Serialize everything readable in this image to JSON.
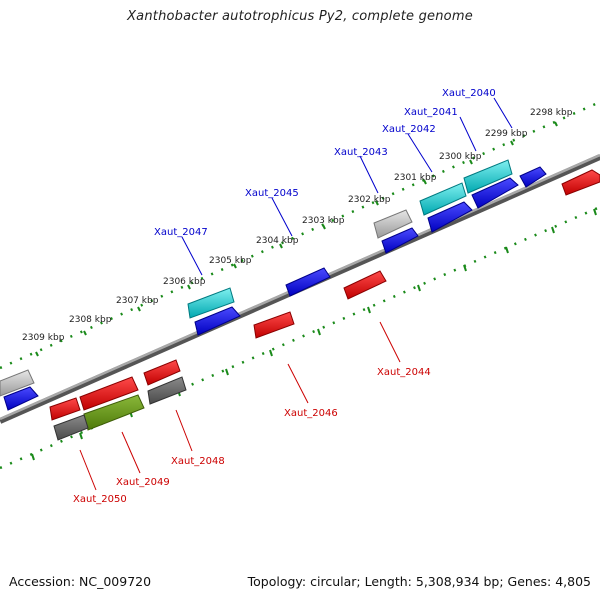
{
  "header": {
    "title": "Xanthobacter autotrophicus Py2, complete genome"
  },
  "footer": {
    "accession": "Accession: NC_009720",
    "summary": "Topology: circular; Length: 5,308,934 bp; Genes: 4,805"
  },
  "scale": {
    "ticks": [
      "2298 kbp",
      "2299 kbp",
      "2300 kbp",
      "2301 kbp",
      "2302 kbp",
      "2303 kbp",
      "2304 kbp",
      "2305 kbp",
      "2306 kbp",
      "2307 kbp",
      "2308 kbp",
      "2309 kbp"
    ]
  },
  "genes": {
    "forward_labels": [
      "Xaut_2040",
      "Xaut_2041",
      "Xaut_2042",
      "Xaut_2043",
      "Xaut_2045",
      "Xaut_2047"
    ],
    "reverse_labels": [
      "Xaut_2044",
      "Xaut_2046",
      "Xaut_2048",
      "Xaut_2049",
      "Xaut_2050"
    ]
  },
  "colors": {
    "forward": "#0000dd",
    "reverse": "#dd0000",
    "highlight_forward": "#00c0c8",
    "highlight_reverse": "#5a8a10",
    "pseudo_light": "#b8b8b8",
    "pseudo_dark": "#666666",
    "backbone": "#888888",
    "ruler": "#1a8a1a"
  }
}
